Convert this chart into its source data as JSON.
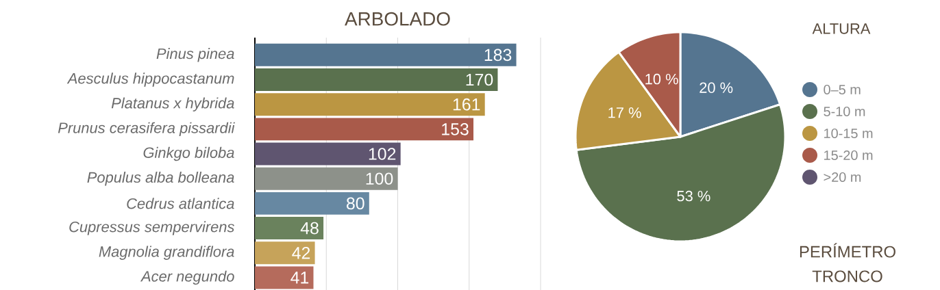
{
  "chart_data": [
    {
      "type": "bar",
      "title": "ARBOLADO",
      "orientation": "horizontal",
      "categories": [
        "Pinus pinea",
        "Aesculus hippocastanum",
        "Platanus x hybrida",
        "Prunus cerasifera pissardii",
        "Ginkgo biloba",
        "Populus alba bolleana",
        "Cedrus atlantica",
        "Cupressus sempervirens",
        "Magnolia grandiflora",
        "Acer negundo"
      ],
      "values": [
        183,
        170,
        161,
        153,
        102,
        100,
        80,
        48,
        42,
        41
      ],
      "colors": [
        "#557590",
        "#5a714e",
        "#bb9642",
        "#a95a4a",
        "#5f5570",
        "#8d918a",
        "#6788a2",
        "#6a825d",
        "#c6a35a",
        "#b56b5c"
      ],
      "xlim": [
        0,
        200
      ],
      "xticks": [
        {
          "value": 0,
          "label": null
        },
        {
          "value": 50,
          "label": null
        },
        {
          "value": 100,
          "label": null
        },
        {
          "value": 150,
          "label": null
        },
        {
          "value": 200,
          "label": null
        }
      ],
      "grid": "x",
      "tick_labels": "y",
      "data_labels": true
    },
    {
      "type": "pie",
      "title": "ALTURA",
      "categories": [
        "0–5 m",
        "5-10 m",
        "10-15 m",
        "15-20 m",
        ">20 m"
      ],
      "values": [
        20,
        53,
        17,
        10,
        0
      ],
      "colors": [
        "#557590",
        "#5a714e",
        "#bb9642",
        "#a95a4a",
        "#5f5570"
      ],
      "value_labels": [
        "20 %",
        "53 %",
        "17 %",
        "10 %",
        null
      ],
      "legend": "right"
    },
    {
      "type": "other",
      "title": "PERÍMETRO TRONCO"
    }
  ]
}
